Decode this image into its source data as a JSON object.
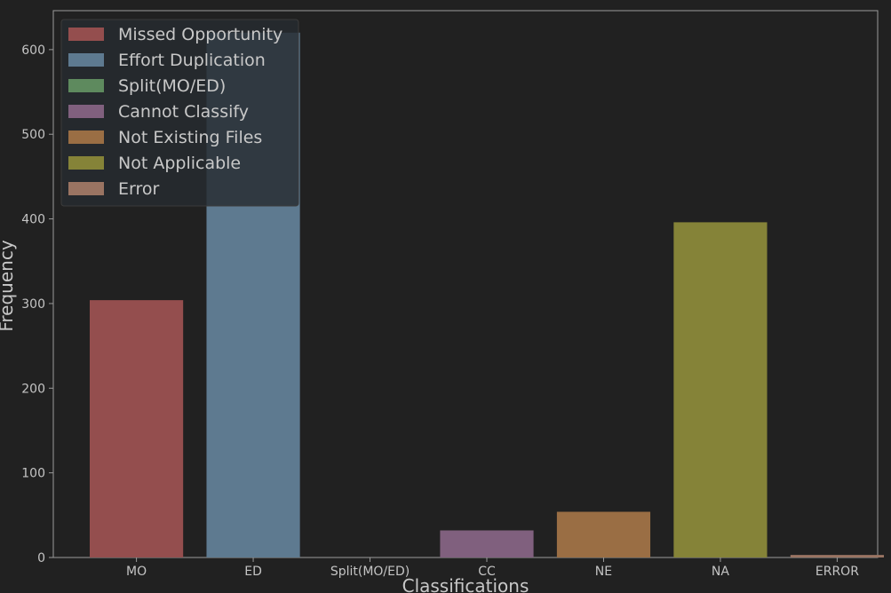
{
  "chart_data": {
    "type": "bar",
    "categories": [
      "MO",
      "ED",
      "Split(MO/ED)",
      "CC",
      "NE",
      "NA",
      "ERROR"
    ],
    "values": [
      304,
      620,
      0,
      32,
      54,
      396,
      3
    ],
    "colors": [
      "#944e4e",
      "#5e7a90",
      "#5e8a5e",
      "#80607e",
      "#9a6e44",
      "#858338",
      "#9a7462"
    ],
    "xlabel": "Classifications",
    "ylabel": "Frequency",
    "ylim": [
      0,
      646
    ],
    "yticks": [
      0,
      100,
      200,
      300,
      400,
      500,
      600
    ],
    "grid": false,
    "legend_position": "top-left",
    "legend": [
      {
        "label": "Missed Opportunity",
        "color": "#944e4e"
      },
      {
        "label": "Effort Duplication",
        "color": "#5e7a90"
      },
      {
        "label": "Split(MO/ED)",
        "color": "#5e8a5e"
      },
      {
        "label": "Cannot Classify",
        "color": "#80607e"
      },
      {
        "label": "Not Existing Files",
        "color": "#9a6e44"
      },
      {
        "label": "Not Applicable",
        "color": "#858338"
      },
      {
        "label": "Error",
        "color": "#9a7462"
      }
    ]
  }
}
